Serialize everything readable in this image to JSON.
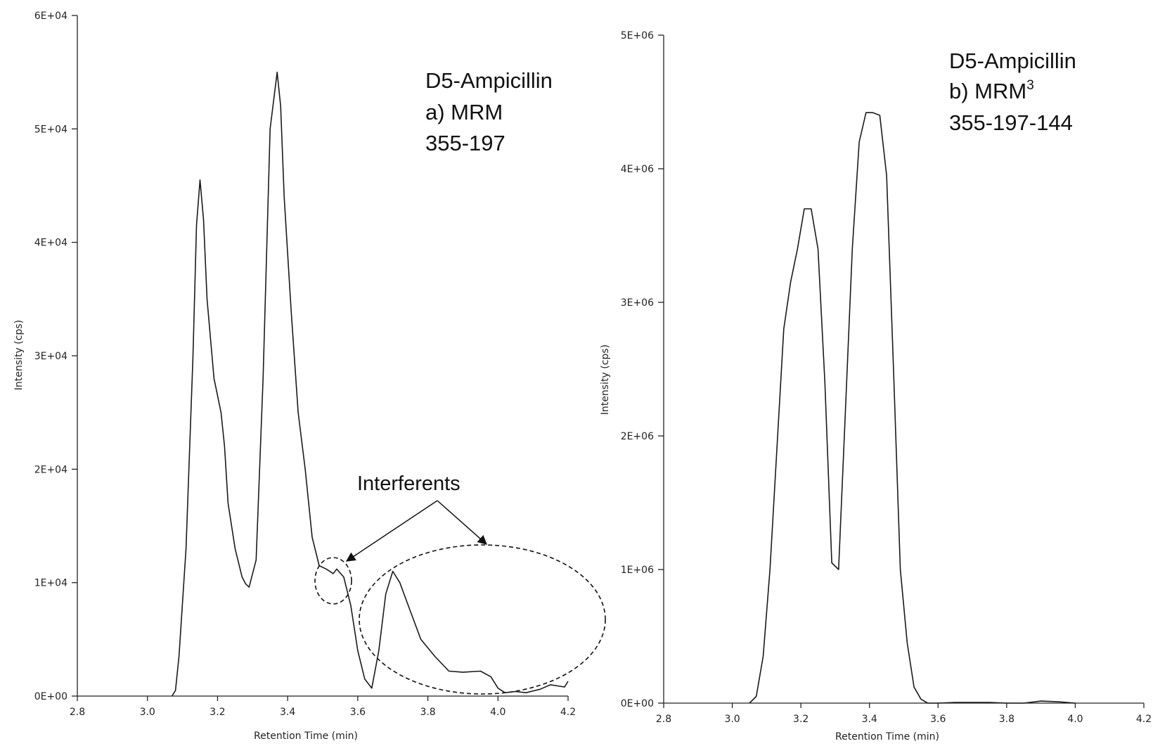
{
  "chart_data": [
    {
      "type": "line",
      "title": "",
      "xlabel": "Retention Time (min)",
      "ylabel": "Intensity (cps)",
      "xlim": [
        2.8,
        4.2
      ],
      "ylim": [
        0,
        60000
      ],
      "x_ticks": [
        "2.8",
        "3.0",
        "3.2",
        "3.4",
        "3.6",
        "3.8",
        "4.0",
        "4.2"
      ],
      "y_ticks": [
        "0E+00",
        "1E+04",
        "2E+04",
        "3E+04",
        "4E+04",
        "5E+04",
        "6E+04"
      ],
      "annotation_lines": [
        "D5-Ampicillin",
        "a) MRM",
        "355-197"
      ],
      "callout_label": "Interferents",
      "grid": false,
      "series": [
        {
          "x": [
            3.07,
            3.08,
            3.09,
            3.11,
            3.13,
            3.14,
            3.15,
            3.16,
            3.17,
            3.19,
            3.21,
            3.22,
            3.23,
            3.25,
            3.27,
            3.28,
            3.29,
            3.31,
            3.33,
            3.35,
            3.37,
            3.38,
            3.39,
            3.41,
            3.43,
            3.45,
            3.47,
            3.49,
            3.51,
            3.53,
            3.54,
            3.56,
            3.58,
            3.6,
            3.62,
            3.64,
            3.66,
            3.68,
            3.7,
            3.72,
            3.75,
            3.78,
            3.82,
            3.86,
            3.9,
            3.95,
            3.98,
            4.0,
            4.02,
            4.05,
            4.08,
            4.12,
            4.15,
            4.17,
            4.19,
            4.2
          ],
          "y": [
            0,
            500,
            3500,
            13000,
            30000,
            41500,
            45500,
            42000,
            35000,
            28000,
            25000,
            22000,
            17000,
            13000,
            10500,
            9900,
            9600,
            12000,
            28000,
            50000,
            55000,
            52000,
            44000,
            34000,
            25000,
            20000,
            14000,
            11500,
            11200,
            10800,
            11200,
            10500,
            8000,
            4000,
            1500,
            700,
            4000,
            9000,
            11000,
            10000,
            7500,
            5000,
            3500,
            2200,
            2100,
            2200,
            1700,
            700,
            300,
            400,
            300,
            600,
            1000,
            900,
            800,
            1300
          ]
        }
      ]
    },
    {
      "type": "line",
      "title": "",
      "xlabel": "Retention Time (min)",
      "ylabel": "Intensity (cps)",
      "xlim": [
        2.8,
        4.2
      ],
      "ylim": [
        0,
        5000000
      ],
      "x_ticks": [
        "2.8",
        "3.0",
        "3.2",
        "3.4",
        "3.6",
        "3.8",
        "4.0",
        "4.2"
      ],
      "y_ticks": [
        "0E+00",
        "1E+06",
        "2E+06",
        "3E+06",
        "4E+06",
        "5E+06"
      ],
      "annotation_lines": [
        "D5-Ampicillin",
        "b) MRM",
        "355-197-144"
      ],
      "annotation_superscript": "3",
      "grid": false,
      "series": [
        {
          "x": [
            3.05,
            3.07,
            3.09,
            3.11,
            3.13,
            3.15,
            3.17,
            3.19,
            3.21,
            3.23,
            3.25,
            3.27,
            3.29,
            3.31,
            3.33,
            3.35,
            3.37,
            3.39,
            3.41,
            3.43,
            3.45,
            3.47,
            3.49,
            3.51,
            3.53,
            3.55,
            3.57,
            3.6,
            3.65,
            3.7,
            3.75,
            3.8,
            3.85,
            3.9,
            3.95,
            4.0
          ],
          "y": [
            0,
            50000,
            350000,
            1000000,
            1900000,
            2800000,
            3150000,
            3400000,
            3700000,
            3700000,
            3400000,
            2400000,
            1050000,
            1000000,
            2200000,
            3400000,
            4200000,
            4420000,
            4420000,
            4400000,
            3950000,
            2500000,
            1000000,
            450000,
            120000,
            30000,
            0,
            0,
            5000,
            5000,
            5000,
            0,
            0,
            15000,
            10000,
            0
          ]
        }
      ]
    }
  ]
}
